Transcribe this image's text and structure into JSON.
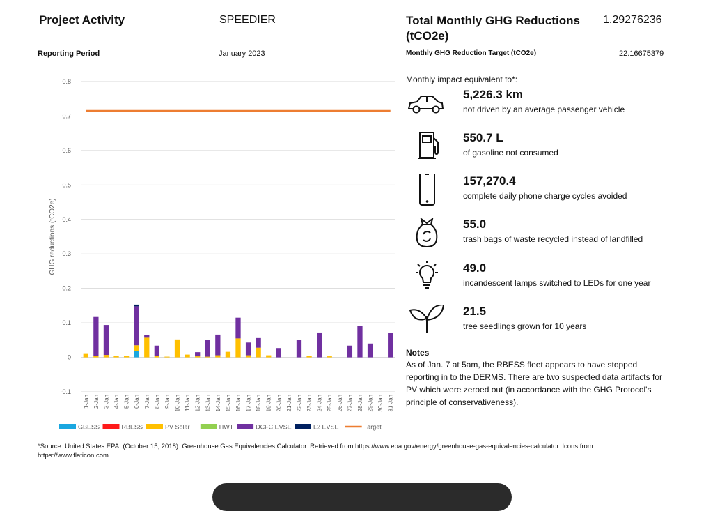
{
  "header": {
    "activity_label": "Project Activity",
    "activity_value": "SPEEDIER",
    "period_label": "Reporting Period",
    "period_value": "January 2023",
    "total_label": "Total Monthly GHG Reductions (tCO2e)",
    "total_value": "1.29276236",
    "target_label": "Monthly GHG Reduction Target (tCO2e)",
    "target_value": "22.16675379"
  },
  "equivalents": {
    "intro": "Monthly impact equivalent to*:",
    "items": [
      {
        "icon": "car-icon",
        "value": "5,226.3 km",
        "desc": "not driven by an average passenger vehicle"
      },
      {
        "icon": "fuel-pump-icon",
        "value": "550.7 L",
        "desc": "of gasoline not consumed"
      },
      {
        "icon": "phone-icon",
        "value": "157,270.4",
        "desc": "complete daily phone charge cycles avoided"
      },
      {
        "icon": "recycle-bag-icon",
        "value": "55.0",
        "desc": "trash bags of waste recycled instead of landfilled"
      },
      {
        "icon": "lightbulb-icon",
        "value": "49.0",
        "desc": "incandescent lamps switched to LEDs for one year"
      },
      {
        "icon": "seedling-icon",
        "value": "21.5",
        "desc": "tree seedlings grown for 10 years"
      }
    ]
  },
  "notes": {
    "title": "Notes",
    "body": "As of Jan. 7 at 5am, the RBESS fleet appears to have stopped reporting in to the DERMS. There are two suspected data artifacts for PV which were zeroed out (in accordance with the GHG Protocol's principle of conservativeness)."
  },
  "footer": "*Source: United States EPA. (October 15, 2018). Greenhouse Gas Equivalencies Calculator. Retrieved from https://www.epa.gov/energy/greenhouse-gas-equivalencies-calculator. Icons from https://www.flaticon.com.",
  "chart_data": {
    "type": "bar",
    "stacked": true,
    "ylabel": "GHG reductions (tCO2e)",
    "ylim": [
      -0.1,
      0.8
    ],
    "yticks": [
      -0.1,
      0,
      0.1,
      0.2,
      0.3,
      0.4,
      0.5,
      0.6,
      0.7,
      0.8
    ],
    "grid": true,
    "legend_position": "bottom",
    "categories": [
      "1-Jan",
      "2-Jan",
      "3-Jan",
      "4-Jan",
      "5-Jan",
      "6-Jan",
      "7-Jan",
      "8-Jan",
      "9-Jan",
      "10-Jan",
      "11-Jan",
      "12-Jan",
      "13-Jan",
      "14-Jan",
      "15-Jan",
      "16-Jan",
      "17-Jan",
      "18-Jan",
      "19-Jan",
      "20-Jan",
      "21-Jan",
      "22-Jan",
      "23-Jan",
      "24-Jan",
      "25-Jan",
      "26-Jan",
      "27-Jan",
      "28-Jan",
      "29-Jan",
      "30-Jan",
      "31-Jan"
    ],
    "series": [
      {
        "name": "GBESS",
        "color": "#1aa7e0",
        "values": [
          0,
          0,
          0,
          0,
          0,
          0.018,
          0,
          0,
          0,
          0,
          0,
          0,
          0,
          0,
          0,
          0,
          0,
          0,
          0,
          0,
          0,
          0,
          0,
          0,
          0,
          0,
          0,
          0,
          0,
          0,
          0
        ]
      },
      {
        "name": "RBESS",
        "color": "#ff1a1a",
        "values": [
          0,
          0,
          0,
          0,
          0,
          0,
          0,
          0,
          0,
          0,
          0,
          0,
          0,
          0,
          0,
          0,
          0,
          0,
          0,
          0,
          0,
          0,
          0,
          0,
          0,
          0,
          0,
          0,
          0,
          0,
          0
        ]
      },
      {
        "name": "PV Solar",
        "color": "#ffc000",
        "values": [
          0.01,
          0.005,
          0.007,
          0.004,
          0.005,
          0.017,
          0.057,
          0.005,
          0.002,
          0.052,
          0.008,
          0.003,
          0.002,
          0.006,
          0.016,
          0.055,
          0.006,
          0.028,
          0.006,
          0,
          0,
          0,
          0.004,
          0,
          0.003,
          0,
          0,
          0,
          0,
          0,
          0
        ]
      },
      {
        "name": "HWT",
        "color": "#92d050",
        "values": [
          0,
          0,
          0,
          0,
          0,
          0,
          0,
          0,
          0,
          0,
          0,
          0,
          0,
          0,
          0,
          0,
          0,
          0,
          0,
          0,
          0,
          0,
          0,
          0,
          0,
          0,
          0,
          0,
          0,
          0,
          0
        ]
      },
      {
        "name": "DCFC EVSE",
        "color": "#7030a0",
        "values": [
          0,
          0.112,
          0.087,
          0,
          0,
          0.113,
          0.008,
          0.029,
          0,
          0,
          0,
          0.012,
          0.049,
          0.06,
          0,
          0.06,
          0.037,
          0.028,
          0,
          0.027,
          0,
          0.05,
          0,
          0.072,
          0,
          0,
          0.034,
          0.091,
          0.04,
          0,
          0.071
        ]
      },
      {
        "name": "L2 EVSE",
        "color": "#002060",
        "values": [
          0,
          0,
          0,
          0,
          0,
          0.005,
          0,
          0,
          0,
          0,
          0,
          0,
          0,
          0,
          0,
          0,
          0,
          0,
          0,
          0,
          0,
          0,
          0,
          0,
          0,
          0,
          0,
          0,
          0,
          0,
          0
        ]
      },
      {
        "name": "Target",
        "color": "#ed7d31",
        "type": "line",
        "values": [
          0.715,
          0.715,
          0.715,
          0.715,
          0.715,
          0.715,
          0.715,
          0.715,
          0.715,
          0.715,
          0.715,
          0.715,
          0.715,
          0.715,
          0.715,
          0.715,
          0.715,
          0.715,
          0.715,
          0.715,
          0.715,
          0.715,
          0.715,
          0.715,
          0.715,
          0.715,
          0.715,
          0.715,
          0.715,
          0.715,
          0.715
        ]
      }
    ]
  }
}
